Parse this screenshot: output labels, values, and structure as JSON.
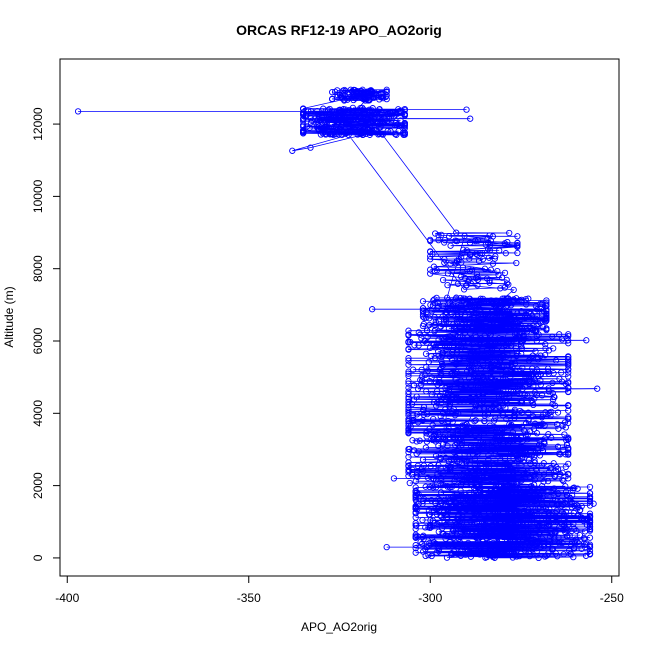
{
  "chart_data": {
    "type": "scatter",
    "title": "ORCAS RF12-19 APO_AO2orig",
    "xlabel": "APO_AO2orig",
    "ylabel": "Altitude (m)",
    "xlim": [
      -402,
      -248
    ],
    "ylim": [
      -500,
      13800
    ],
    "x_ticks": [
      -400,
      -350,
      -300,
      -250
    ],
    "y_ticks": [
      0,
      2000,
      4000,
      6000,
      8000,
      10000,
      12000
    ],
    "marker": "open-circle",
    "connect_points": true,
    "series_color": "#0000ff",
    "clusters": [
      {
        "x_min": -327,
        "x_max": -312,
        "y_min": 12650,
        "y_max": 12950,
        "n": 180
      },
      {
        "x_min": -335,
        "x_max": -307,
        "y_min": 11700,
        "y_max": 12450,
        "n": 260
      },
      {
        "x_min": -300,
        "x_max": -276,
        "y_min": 7400,
        "y_max": 9000,
        "n": 110
      },
      {
        "x_min": -302,
        "x_max": -268,
        "y_min": 6300,
        "y_max": 7200,
        "n": 260
      },
      {
        "x_min": -306,
        "x_max": -262,
        "y_min": 2000,
        "y_max": 6300,
        "n": 900
      },
      {
        "x_min": -304,
        "x_max": -256,
        "y_min": 0,
        "y_max": 2000,
        "n": 700
      }
    ],
    "outliers": [
      {
        "x": -397,
        "y": 12350
      },
      {
        "x": -290,
        "y": 12400
      },
      {
        "x": -289,
        "y": 12150
      },
      {
        "x": -338,
        "y": 11260
      },
      {
        "x": -333,
        "y": 11350
      },
      {
        "x": -316,
        "y": 6880
      },
      {
        "x": -254,
        "y": 4680
      },
      {
        "x": -255,
        "y": 1500
      },
      {
        "x": -257,
        "y": 6020
      },
      {
        "x": -310,
        "y": 2200
      },
      {
        "x": -312,
        "y": 300
      },
      {
        "x": -259,
        "y": 390
      }
    ]
  }
}
